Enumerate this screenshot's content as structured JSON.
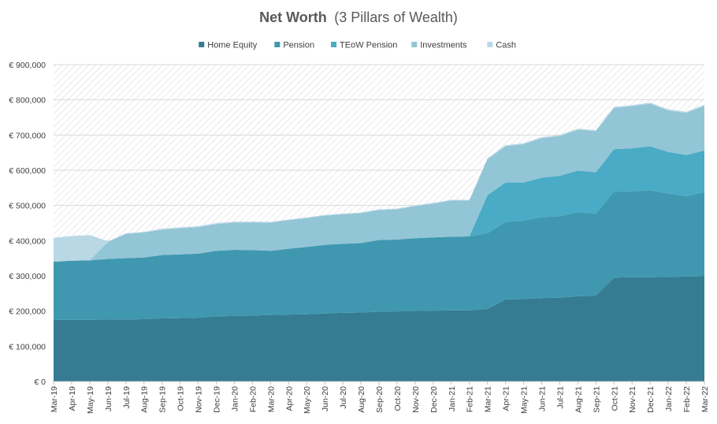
{
  "chart_data": {
    "type": "area",
    "stacked": true,
    "title": "Net Worth",
    "subtitle": "(3 Pillars of Wealth)",
    "legend_position": "top",
    "grid": true,
    "ylim": [
      0,
      900000
    ],
    "y_ticks": [
      {
        "value": 0,
        "label": "€ 0"
      },
      {
        "value": 100000,
        "label": "€ 100,000"
      },
      {
        "value": 200000,
        "label": "€ 200,000"
      },
      {
        "value": 300000,
        "label": "€ 300,000"
      },
      {
        "value": 400000,
        "label": "€ 400,000"
      },
      {
        "value": 500000,
        "label": "€ 500,000"
      },
      {
        "value": 600000,
        "label": "€ 600,000"
      },
      {
        "value": 700000,
        "label": "€ 700,000"
      },
      {
        "value": 800000,
        "label": "€ 800,000"
      },
      {
        "value": 900000,
        "label": "€ 900,000"
      }
    ],
    "categories": [
      "Mar-19",
      "Apr-19",
      "May-19",
      "Jun-19",
      "Jul-19",
      "Aug-19",
      "Sep-19",
      "Oct-19",
      "Nov-19",
      "Dec-19",
      "Jan-20",
      "Feb-20",
      "Mar-20",
      "Apr-20",
      "May-20",
      "Jun-20",
      "Jul-20",
      "Aug-20",
      "Sep-20",
      "Oct-20",
      "Nov-20",
      "Dec-20",
      "Jan-21",
      "Feb-21",
      "Mar-21",
      "Apr-21",
      "May-21",
      "Jun-21",
      "Jul-21",
      "Aug-21",
      "Sep-21",
      "Oct-21",
      "Nov-21",
      "Dec-21",
      "Jan-22",
      "Feb-22",
      "Mar-22"
    ],
    "series": [
      {
        "name": "Home Equity",
        "color": "#357c93",
        "values": [
          175000,
          175000,
          175000,
          176000,
          176000,
          177000,
          179000,
          180000,
          181000,
          185000,
          186000,
          187000,
          189000,
          190000,
          191000,
          193000,
          195000,
          196000,
          198000,
          199000,
          200000,
          201000,
          202000,
          202000,
          206000,
          233000,
          234000,
          237000,
          238000,
          242000,
          244000,
          295000,
          296000,
          296000,
          297000,
          298000,
          299000
        ]
      },
      {
        "name": "Pension",
        "color": "#3f98b0",
        "values": [
          165000,
          168000,
          169000,
          172000,
          174000,
          175000,
          180000,
          181000,
          182000,
          186000,
          188000,
          186000,
          182000,
          187000,
          191000,
          195000,
          196000,
          197000,
          204000,
          204000,
          207000,
          208000,
          209000,
          210000,
          215000,
          220000,
          223000,
          230000,
          231000,
          239000,
          233000,
          244000,
          244000,
          247000,
          237000,
          228000,
          239000
        ]
      },
      {
        "name": "TEoW Pension",
        "color": "#49abc5",
        "values": [
          0,
          0,
          0,
          0,
          0,
          0,
          0,
          0,
          0,
          0,
          0,
          0,
          0,
          0,
          0,
          0,
          0,
          0,
          0,
          0,
          0,
          0,
          0,
          0,
          108000,
          112000,
          108000,
          112000,
          115000,
          118000,
          117000,
          121000,
          122000,
          125000,
          118000,
          117000,
          118000
        ]
      },
      {
        "name": "Investments",
        "color": "#92c5d6",
        "values": [
          0,
          0,
          0,
          48000,
          69000,
          71000,
          72000,
          74000,
          75000,
          76000,
          77000,
          79000,
          80000,
          81000,
          82000,
          83000,
          84000,
          85000,
          85000,
          86000,
          91000,
          96000,
          103000,
          102000,
          102000,
          103000,
          109000,
          112000,
          113000,
          116000,
          117000,
          117000,
          120000,
          121000,
          118000,
          120000,
          127000
        ]
      },
      {
        "name": "Cash",
        "color": "#b9d8e6",
        "values": [
          68000,
          70000,
          72000,
          2000,
          2000,
          2000,
          3000,
          3000,
          3000,
          3000,
          3000,
          2000,
          2000,
          2000,
          2000,
          2000,
          2000,
          2000,
          2000,
          2000,
          2000,
          2000,
          2000,
          2000,
          3000,
          3000,
          3000,
          3000,
          3000,
          3000,
          3000,
          3000,
          3000,
          3000,
          3000,
          3000,
          3000
        ]
      }
    ]
  }
}
